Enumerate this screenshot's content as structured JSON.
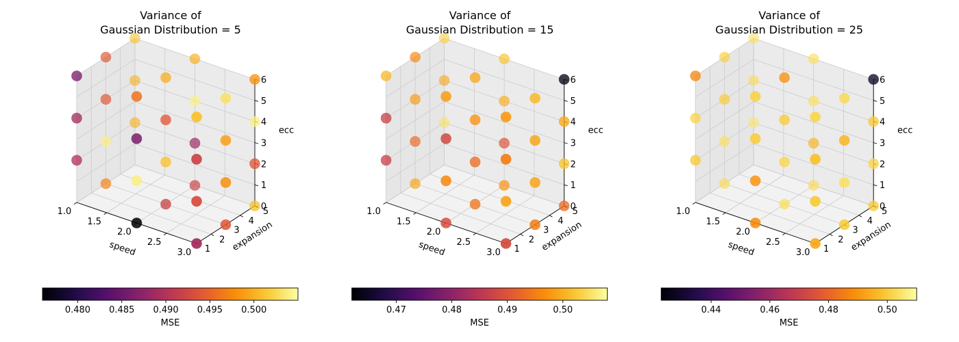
{
  "chart_data": [
    {
      "type": "scatter",
      "title_lines": [
        "Variance of",
        "Gaussian Distribution = 5"
      ],
      "xlabel": "speed",
      "ylabel": "expansion",
      "zlabel": "ecc",
      "xlim": [
        1.0,
        3.0
      ],
      "ylim": [
        1,
        5
      ],
      "zlim": [
        0,
        6
      ],
      "xticks": [
        "1.0",
        "1.5",
        "2.0",
        "2.5",
        "3.0"
      ],
      "yticks": [
        "1",
        "2",
        "3",
        "4",
        "5"
      ],
      "zticks": [
        "0",
        "1",
        "2",
        "3",
        "4",
        "5",
        "6"
      ],
      "grid": true,
      "colormap": "inferno",
      "colorbar": {
        "label": "MSE",
        "min": 0.476,
        "max": 0.505,
        "ticks": [
          "0.480",
          "0.485",
          "0.490",
          "0.495",
          "0.500"
        ],
        "tick_values": [
          0.48,
          0.485,
          0.49,
          0.495,
          0.5
        ]
      },
      "points": [
        {
          "x": 1.0,
          "y": 1,
          "z": 2,
          "mse": 0.49
        },
        {
          "x": 1.0,
          "y": 1,
          "z": 4,
          "mse": 0.489
        },
        {
          "x": 1.0,
          "y": 1,
          "z": 6,
          "mse": 0.486
        },
        {
          "x": 1.0,
          "y": 3,
          "z": 0,
          "mse": 0.497
        },
        {
          "x": 1.0,
          "y": 3,
          "z": 2,
          "mse": 0.504
        },
        {
          "x": 1.0,
          "y": 3,
          "z": 4,
          "mse": 0.494
        },
        {
          "x": 1.0,
          "y": 3,
          "z": 6,
          "mse": 0.494
        },
        {
          "x": 1.0,
          "y": 5,
          "z": 2,
          "mse": 0.5
        },
        {
          "x": 1.0,
          "y": 5,
          "z": 4,
          "mse": 0.5
        },
        {
          "x": 1.0,
          "y": 5,
          "z": 6,
          "mse": 0.501
        },
        {
          "x": 2.0,
          "y": 1,
          "z": 0,
          "mse": 0.476
        },
        {
          "x": 2.0,
          "y": 1,
          "z": 2,
          "mse": 0.504
        },
        {
          "x": 2.0,
          "y": 1,
          "z": 4,
          "mse": 0.486
        },
        {
          "x": 2.0,
          "y": 1,
          "z": 6,
          "mse": 0.496
        },
        {
          "x": 2.0,
          "y": 3,
          "z": 0,
          "mse": 0.492
        },
        {
          "x": 2.0,
          "y": 3,
          "z": 2,
          "mse": 0.501
        },
        {
          "x": 2.0,
          "y": 3,
          "z": 4,
          "mse": 0.494
        },
        {
          "x": 2.0,
          "y": 3,
          "z": 6,
          "mse": 0.5
        },
        {
          "x": 2.0,
          "y": 5,
          "z": 0,
          "mse": 0.492
        },
        {
          "x": 2.0,
          "y": 5,
          "z": 2,
          "mse": 0.488
        },
        {
          "x": 2.0,
          "y": 5,
          "z": 4,
          "mse": 0.504
        },
        {
          "x": 2.0,
          "y": 5,
          "z": 6,
          "mse": 0.5
        },
        {
          "x": 3.0,
          "y": 1,
          "z": 0,
          "mse": 0.489
        },
        {
          "x": 3.0,
          "y": 1,
          "z": 2,
          "mse": 0.493
        },
        {
          "x": 3.0,
          "y": 1,
          "z": 4,
          "mse": 0.492
        },
        {
          "x": 3.0,
          "y": 1,
          "z": 6,
          "mse": 0.501
        },
        {
          "x": 3.0,
          "y": 3,
          "z": 0,
          "mse": 0.494
        },
        {
          "x": 3.0,
          "y": 3,
          "z": 2,
          "mse": 0.498
        },
        {
          "x": 3.0,
          "y": 3,
          "z": 4,
          "mse": 0.499
        },
        {
          "x": 3.0,
          "y": 3,
          "z": 6,
          "mse": 0.503
        },
        {
          "x": 3.0,
          "y": 5,
          "z": 0,
          "mse": 0.501
        },
        {
          "x": 3.0,
          "y": 5,
          "z": 2,
          "mse": 0.494
        },
        {
          "x": 3.0,
          "y": 5,
          "z": 4,
          "mse": 0.504
        },
        {
          "x": 3.0,
          "y": 5,
          "z": 6,
          "mse": 0.498
        }
      ]
    },
    {
      "type": "scatter",
      "title_lines": [
        "Variance of",
        "Gaussian Distribution = 15"
      ],
      "xlabel": "speed",
      "ylabel": "expansion",
      "zlabel": "ecc",
      "xlim": [
        1.0,
        3.0
      ],
      "ylim": [
        1,
        5
      ],
      "zlim": [
        0,
        6
      ],
      "xticks": [
        "1.0",
        "1.5",
        "2.0",
        "2.5",
        "3.0"
      ],
      "yticks": [
        "1",
        "2",
        "3",
        "4",
        "5"
      ],
      "zticks": [
        "0",
        "1",
        "2",
        "3",
        "4",
        "5",
        "6"
      ],
      "grid": true,
      "colormap": "inferno",
      "colorbar": {
        "label": "MSE",
        "min": 0.462,
        "max": 0.508,
        "ticks": [
          "0.47",
          "0.48",
          "0.49",
          "0.50"
        ],
        "tick_values": [
          0.47,
          0.48,
          0.49,
          0.5
        ]
      },
      "points": [
        {
          "x": 1.0,
          "y": 1,
          "z": 2,
          "mse": 0.487
        },
        {
          "x": 1.0,
          "y": 1,
          "z": 4,
          "mse": 0.487
        },
        {
          "x": 1.0,
          "y": 1,
          "z": 6,
          "mse": 0.501
        },
        {
          "x": 1.0,
          "y": 3,
          "z": 0,
          "mse": 0.499
        },
        {
          "x": 1.0,
          "y": 3,
          "z": 2,
          "mse": 0.493
        },
        {
          "x": 1.0,
          "y": 3,
          "z": 4,
          "mse": 0.498
        },
        {
          "x": 1.0,
          "y": 3,
          "z": 6,
          "mse": 0.496
        },
        {
          "x": 1.0,
          "y": 5,
          "z": 2,
          "mse": 0.505
        },
        {
          "x": 1.0,
          "y": 5,
          "z": 4,
          "mse": 0.499
        },
        {
          "x": 1.0,
          "y": 5,
          "z": 6,
          "mse": 0.503
        },
        {
          "x": 2.0,
          "y": 1,
          "z": 0,
          "mse": 0.489
        },
        {
          "x": 2.0,
          "y": 1,
          "z": 2,
          "mse": 0.496
        },
        {
          "x": 2.0,
          "y": 1,
          "z": 4,
          "mse": 0.488
        },
        {
          "x": 2.0,
          "y": 1,
          "z": 6,
          "mse": 0.498
        },
        {
          "x": 2.0,
          "y": 3,
          "z": 0,
          "mse": 0.494
        },
        {
          "x": 2.0,
          "y": 3,
          "z": 2,
          "mse": 0.493
        },
        {
          "x": 2.0,
          "y": 3,
          "z": 4,
          "mse": 0.497
        },
        {
          "x": 2.0,
          "y": 3,
          "z": 6,
          "mse": 0.499
        },
        {
          "x": 2.0,
          "y": 5,
          "z": 0,
          "mse": 0.497
        },
        {
          "x": 2.0,
          "y": 5,
          "z": 2,
          "mse": 0.49
        },
        {
          "x": 2.0,
          "y": 5,
          "z": 4,
          "mse": 0.5
        },
        {
          "x": 2.0,
          "y": 5,
          "z": 6,
          "mse": 0.502
        },
        {
          "x": 3.0,
          "y": 1,
          "z": 0,
          "mse": 0.489
        },
        {
          "x": 3.0,
          "y": 1,
          "z": 2,
          "mse": 0.499
        },
        {
          "x": 3.0,
          "y": 1,
          "z": 4,
          "mse": 0.495
        },
        {
          "x": 3.0,
          "y": 1,
          "z": 6,
          "mse": 0.498
        },
        {
          "x": 3.0,
          "y": 3,
          "z": 0,
          "mse": 0.495
        },
        {
          "x": 3.0,
          "y": 3,
          "z": 2,
          "mse": 0.499
        },
        {
          "x": 3.0,
          "y": 3,
          "z": 4,
          "mse": 0.499
        },
        {
          "x": 3.0,
          "y": 3,
          "z": 6,
          "mse": 0.501
        },
        {
          "x": 3.0,
          "y": 5,
          "z": 0,
          "mse": 0.493
        },
        {
          "x": 3.0,
          "y": 5,
          "z": 2,
          "mse": 0.502
        },
        {
          "x": 3.0,
          "y": 5,
          "z": 4,
          "mse": 0.499
        },
        {
          "x": 3.0,
          "y": 5,
          "z": 6,
          "mse": 0.463
        }
      ]
    },
    {
      "type": "scatter",
      "title_lines": [
        "Variance of",
        "Gaussian Distribution = 25"
      ],
      "xlabel": "speed",
      "ylabel": "expansion",
      "zlabel": "ecc",
      "xlim": [
        1.0,
        3.0
      ],
      "ylim": [
        1,
        5
      ],
      "zlim": [
        0,
        6
      ],
      "xticks": [
        "1.0",
        "1.5",
        "2.0",
        "2.5",
        "3.0"
      ],
      "yticks": [
        "1",
        "2",
        "3",
        "4",
        "5"
      ],
      "zticks": [
        "0",
        "1",
        "2",
        "3",
        "4",
        "5",
        "6"
      ],
      "grid": true,
      "colormap": "inferno",
      "colorbar": {
        "label": "MSE",
        "min": 0.423,
        "max": 0.51,
        "ticks": [
          "0.44",
          "0.46",
          "0.48",
          "0.50"
        ],
        "tick_values": [
          0.44,
          0.46,
          0.48,
          0.5
        ]
      },
      "points": [
        {
          "x": 1.0,
          "y": 1,
          "z": 2,
          "mse": 0.5
        },
        {
          "x": 1.0,
          "y": 1,
          "z": 4,
          "mse": 0.502
        },
        {
          "x": 1.0,
          "y": 1,
          "z": 6,
          "mse": 0.487
        },
        {
          "x": 1.0,
          "y": 3,
          "z": 0,
          "mse": 0.503
        },
        {
          "x": 1.0,
          "y": 3,
          "z": 2,
          "mse": 0.504
        },
        {
          "x": 1.0,
          "y": 3,
          "z": 4,
          "mse": 0.5
        },
        {
          "x": 1.0,
          "y": 3,
          "z": 6,
          "mse": 0.501
        },
        {
          "x": 1.0,
          "y": 5,
          "z": 2,
          "mse": 0.505
        },
        {
          "x": 1.0,
          "y": 5,
          "z": 4,
          "mse": 0.503
        },
        {
          "x": 1.0,
          "y": 5,
          "z": 6,
          "mse": 0.504
        },
        {
          "x": 2.0,
          "y": 1,
          "z": 0,
          "mse": 0.488
        },
        {
          "x": 2.0,
          "y": 1,
          "z": 2,
          "mse": 0.49
        },
        {
          "x": 2.0,
          "y": 1,
          "z": 4,
          "mse": 0.5
        },
        {
          "x": 2.0,
          "y": 1,
          "z": 6,
          "mse": 0.501
        },
        {
          "x": 2.0,
          "y": 3,
          "z": 0,
          "mse": 0.504
        },
        {
          "x": 2.0,
          "y": 3,
          "z": 2,
          "mse": 0.502
        },
        {
          "x": 2.0,
          "y": 3,
          "z": 4,
          "mse": 0.5
        },
        {
          "x": 2.0,
          "y": 3,
          "z": 6,
          "mse": 0.489
        },
        {
          "x": 2.0,
          "y": 5,
          "z": 0,
          "mse": 0.503
        },
        {
          "x": 2.0,
          "y": 5,
          "z": 2,
          "mse": 0.496
        },
        {
          "x": 2.0,
          "y": 5,
          "z": 4,
          "mse": 0.504
        },
        {
          "x": 2.0,
          "y": 5,
          "z": 6,
          "mse": 0.504
        },
        {
          "x": 3.0,
          "y": 1,
          "z": 0,
          "mse": 0.494
        },
        {
          "x": 3.0,
          "y": 1,
          "z": 2,
          "mse": 0.5
        },
        {
          "x": 3.0,
          "y": 1,
          "z": 4,
          "mse": 0.498
        },
        {
          "x": 3.0,
          "y": 1,
          "z": 6,
          "mse": 0.502
        },
        {
          "x": 3.0,
          "y": 3,
          "z": 0,
          "mse": 0.5
        },
        {
          "x": 3.0,
          "y": 3,
          "z": 2,
          "mse": 0.504
        },
        {
          "x": 3.0,
          "y": 3,
          "z": 4,
          "mse": 0.496
        },
        {
          "x": 3.0,
          "y": 3,
          "z": 6,
          "mse": 0.503
        },
        {
          "x": 3.0,
          "y": 5,
          "z": 0,
          "mse": 0.5
        },
        {
          "x": 3.0,
          "y": 5,
          "z": 2,
          "mse": 0.502
        },
        {
          "x": 3.0,
          "y": 5,
          "z": 4,
          "mse": 0.5
        },
        {
          "x": 3.0,
          "y": 5,
          "z": 6,
          "mse": 0.428
        }
      ]
    }
  ]
}
